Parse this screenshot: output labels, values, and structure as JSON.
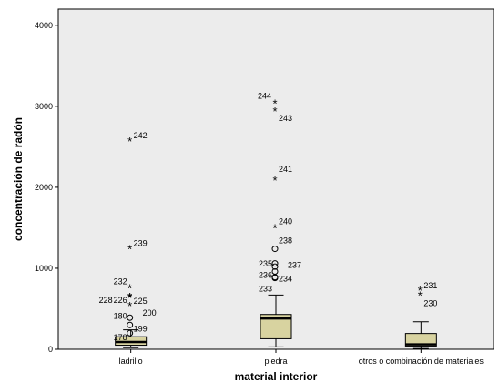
{
  "chart_data": {
    "type": "boxplot",
    "xlabel": "material interior",
    "ylabel": "concentración de radón",
    "ylim": [
      0,
      4200
    ],
    "yticks": [
      0,
      1000,
      2000,
      3000,
      4000
    ],
    "grid": false,
    "colors": {
      "plot_background": "#ececec",
      "box_fill": "#d8d3a0",
      "box_stroke": "#000000",
      "median": "#000000"
    },
    "categories": [
      "ladrillo",
      "piedra",
      "otros o combinación de materiales"
    ],
    "boxes": [
      {
        "category": "ladrillo",
        "whisker_low": 20,
        "q1": 50,
        "median": 90,
        "q3": 155,
        "whisker_high": 240,
        "outliers": [
          {
            "label": "242",
            "value": 2570,
            "marker": "star"
          },
          {
            "label": "239",
            "value": 1240,
            "marker": "star"
          },
          {
            "label": "232",
            "value": 760,
            "marker": "star"
          },
          {
            "label": "228",
            "value": 650,
            "marker": "star"
          },
          {
            "label": "226",
            "value": 650,
            "marker": "star"
          },
          {
            "label": "225",
            "value": 640,
            "marker": "star"
          },
          {
            "label": "200",
            "value": 540,
            "marker": "star"
          },
          {
            "label": "180",
            "value": 390,
            "marker": "circle"
          },
          {
            "label": "199",
            "value": 300,
            "marker": "circle"
          },
          {
            "label": "178",
            "value": 200,
            "marker": "circle"
          }
        ]
      },
      {
        "category": "piedra",
        "whisker_low": 30,
        "q1": 130,
        "median": 380,
        "q3": 430,
        "whisker_high": 670,
        "outliers": [
          {
            "label": "244",
            "value": 3040,
            "marker": "star"
          },
          {
            "label": "243",
            "value": 2940,
            "marker": "star"
          },
          {
            "label": "241",
            "value": 2090,
            "marker": "star"
          },
          {
            "label": "240",
            "value": 1500,
            "marker": "star"
          },
          {
            "label": "238",
            "value": 1240,
            "marker": "circle"
          },
          {
            "label": "237",
            "value": 1060,
            "marker": "circle"
          },
          {
            "label": "235",
            "value": 1020,
            "marker": "circle"
          },
          {
            "label": "236",
            "value": 960,
            "marker": "circle"
          },
          {
            "label": "234",
            "value": 890,
            "marker": "circle"
          },
          {
            "label": "233",
            "value": 880,
            "marker": "circle"
          }
        ]
      },
      {
        "category": "otros o combinación de materiales",
        "whisker_low": 10,
        "q1": 40,
        "median": 60,
        "q3": 195,
        "whisker_high": 340,
        "outliers": [
          {
            "label": "231",
            "value": 730,
            "marker": "star"
          },
          {
            "label": "230",
            "value": 670,
            "marker": "star"
          }
        ]
      }
    ]
  }
}
